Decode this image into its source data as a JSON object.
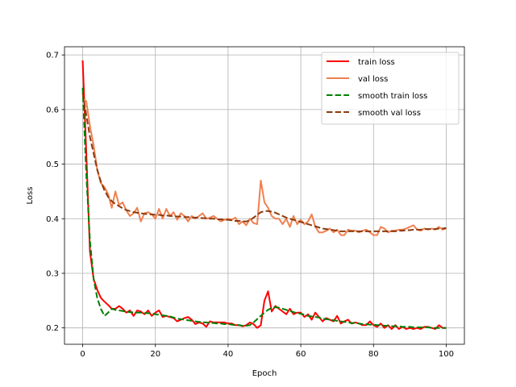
{
  "chart_data": {
    "type": "line",
    "xlabel": "Epoch",
    "ylabel": "Loss",
    "xlim": [
      -5,
      105
    ],
    "ylim": [
      0.17,
      0.715
    ],
    "xticks": [
      0,
      20,
      40,
      60,
      80,
      100
    ],
    "yticks": [
      0.2,
      0.3,
      0.4,
      0.5,
      0.6,
      0.7
    ],
    "xtick_labels": [
      "0",
      "20",
      "40",
      "60",
      "80",
      "100"
    ],
    "ytick_labels": [
      "0.2",
      "0.3",
      "0.4",
      "0.5",
      "0.6",
      "0.7"
    ],
    "grid": true,
    "legend_position": "top-right",
    "x": [
      0,
      1,
      2,
      3,
      4,
      5,
      6,
      7,
      8,
      9,
      10,
      11,
      12,
      13,
      14,
      15,
      16,
      17,
      18,
      19,
      20,
      21,
      22,
      23,
      24,
      25,
      26,
      27,
      28,
      29,
      30,
      31,
      32,
      33,
      34,
      35,
      36,
      37,
      38,
      39,
      40,
      41,
      42,
      43,
      44,
      45,
      46,
      47,
      48,
      49,
      50,
      51,
      52,
      53,
      54,
      55,
      56,
      57,
      58,
      59,
      60,
      61,
      62,
      63,
      64,
      65,
      66,
      67,
      68,
      69,
      70,
      71,
      72,
      73,
      74,
      75,
      76,
      77,
      78,
      79,
      80,
      81,
      82,
      83,
      84,
      85,
      86,
      87,
      88,
      89,
      90,
      91,
      92,
      93,
      94,
      95,
      96,
      97,
      98,
      99,
      100
    ],
    "series": [
      {
        "name": "train loss",
        "color": "#ff0000",
        "dash": "solid",
        "values": [
          0.69,
          0.52,
          0.34,
          0.29,
          0.27,
          0.255,
          0.248,
          0.242,
          0.235,
          0.235,
          0.24,
          0.235,
          0.228,
          0.232,
          0.222,
          0.232,
          0.23,
          0.225,
          0.232,
          0.222,
          0.228,
          0.232,
          0.22,
          0.222,
          0.22,
          0.218,
          0.212,
          0.215,
          0.218,
          0.22,
          0.215,
          0.207,
          0.21,
          0.208,
          0.202,
          0.212,
          0.21,
          0.21,
          0.21,
          0.21,
          0.208,
          0.208,
          0.205,
          0.205,
          0.203,
          0.205,
          0.21,
          0.207,
          0.2,
          0.205,
          0.25,
          0.267,
          0.23,
          0.24,
          0.235,
          0.23,
          0.225,
          0.235,
          0.225,
          0.228,
          0.228,
          0.22,
          0.225,
          0.215,
          0.228,
          0.22,
          0.212,
          0.218,
          0.215,
          0.212,
          0.222,
          0.208,
          0.212,
          0.215,
          0.208,
          0.21,
          0.208,
          0.205,
          0.205,
          0.212,
          0.205,
          0.202,
          0.208,
          0.2,
          0.205,
          0.198,
          0.205,
          0.198,
          0.202,
          0.198,
          0.2,
          0.198,
          0.2,
          0.198,
          0.202,
          0.202,
          0.2,
          0.198,
          0.205,
          0.2,
          0.2
        ]
      },
      {
        "name": "val loss",
        "color": "#f08050",
        "dash": "solid",
        "values": [
          0.62,
          0.615,
          0.57,
          0.535,
          0.49,
          0.465,
          0.458,
          0.445,
          0.42,
          0.45,
          0.425,
          0.43,
          0.415,
          0.405,
          0.41,
          0.42,
          0.395,
          0.41,
          0.412,
          0.408,
          0.4,
          0.418,
          0.4,
          0.418,
          0.405,
          0.412,
          0.398,
          0.41,
          0.405,
          0.395,
          0.405,
          0.4,
          0.405,
          0.41,
          0.4,
          0.402,
          0.405,
          0.4,
          0.395,
          0.398,
          0.4,
          0.398,
          0.402,
          0.39,
          0.395,
          0.388,
          0.4,
          0.392,
          0.39,
          0.47,
          0.43,
          0.42,
          0.405,
          0.4,
          0.4,
          0.39,
          0.4,
          0.385,
          0.405,
          0.39,
          0.398,
          0.39,
          0.395,
          0.408,
          0.385,
          0.375,
          0.375,
          0.378,
          0.382,
          0.375,
          0.38,
          0.37,
          0.37,
          0.38,
          0.378,
          0.378,
          0.375,
          0.378,
          0.38,
          0.375,
          0.37,
          0.37,
          0.385,
          0.382,
          0.375,
          0.378,
          0.378,
          0.38,
          0.38,
          0.382,
          0.385,
          0.388,
          0.38,
          0.378,
          0.382,
          0.38,
          0.382,
          0.38,
          0.385,
          0.38,
          0.382
        ]
      },
      {
        "name": "smooth train loss",
        "color": "#008000",
        "dash": "dashed",
        "values": [
          0.64,
          0.48,
          0.36,
          0.29,
          0.255,
          0.235,
          0.222,
          0.228,
          0.235,
          0.233,
          0.232,
          0.231,
          0.229,
          0.229,
          0.228,
          0.228,
          0.228,
          0.227,
          0.227,
          0.226,
          0.225,
          0.224,
          0.223,
          0.222,
          0.221,
          0.219,
          0.217,
          0.216,
          0.215,
          0.214,
          0.213,
          0.212,
          0.211,
          0.21,
          0.21,
          0.209,
          0.209,
          0.208,
          0.208,
          0.207,
          0.207,
          0.206,
          0.205,
          0.205,
          0.204,
          0.204,
          0.205,
          0.21,
          0.216,
          0.222,
          0.228,
          0.233,
          0.237,
          0.238,
          0.237,
          0.235,
          0.233,
          0.231,
          0.229,
          0.227,
          0.226,
          0.224,
          0.222,
          0.221,
          0.22,
          0.219,
          0.217,
          0.216,
          0.215,
          0.214,
          0.213,
          0.212,
          0.211,
          0.21,
          0.209,
          0.209,
          0.208,
          0.207,
          0.207,
          0.206,
          0.206,
          0.205,
          0.205,
          0.204,
          0.204,
          0.203,
          0.203,
          0.203,
          0.202,
          0.202,
          0.202,
          0.201,
          0.201,
          0.201,
          0.201,
          0.201,
          0.2,
          0.2,
          0.2,
          0.2,
          0.2
        ]
      },
      {
        "name": "smooth val loss",
        "color": "#8b3a0e",
        "dash": "dashed",
        "values": [
          0.63,
          0.59,
          0.55,
          0.52,
          0.49,
          0.468,
          0.452,
          0.44,
          0.432,
          0.427,
          0.423,
          0.419,
          0.416,
          0.414,
          0.412,
          0.411,
          0.41,
          0.409,
          0.408,
          0.408,
          0.407,
          0.407,
          0.406,
          0.406,
          0.405,
          0.405,
          0.404,
          0.404,
          0.403,
          0.403,
          0.402,
          0.402,
          0.402,
          0.401,
          0.401,
          0.4,
          0.4,
          0.399,
          0.399,
          0.398,
          0.398,
          0.397,
          0.396,
          0.396,
          0.395,
          0.395,
          0.397,
          0.402,
          0.407,
          0.412,
          0.414,
          0.414,
          0.413,
          0.411,
          0.408,
          0.405,
          0.402,
          0.4,
          0.398,
          0.396,
          0.394,
          0.392,
          0.39,
          0.388,
          0.386,
          0.384,
          0.382,
          0.381,
          0.38,
          0.379,
          0.378,
          0.377,
          0.377,
          0.377,
          0.377,
          0.377,
          0.377,
          0.377,
          0.377,
          0.377,
          0.377,
          0.377,
          0.377,
          0.377,
          0.377,
          0.377,
          0.377,
          0.378,
          0.378,
          0.379,
          0.379,
          0.38,
          0.38,
          0.38,
          0.381,
          0.381,
          0.381,
          0.381,
          0.382,
          0.382,
          0.383
        ]
      }
    ]
  }
}
